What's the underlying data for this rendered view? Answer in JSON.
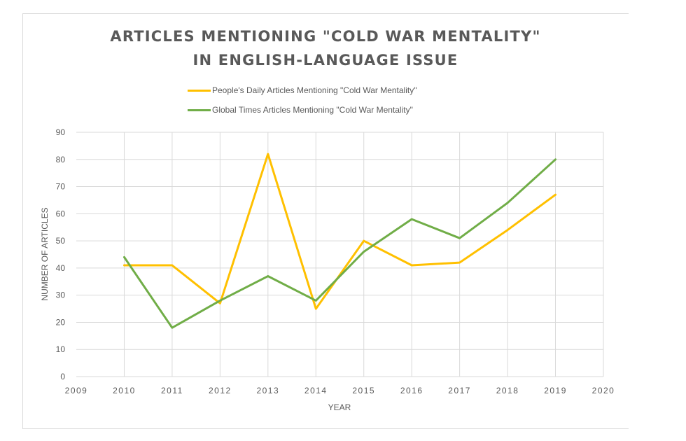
{
  "chart_data": {
    "type": "line",
    "title": "ARTICLES MENTIONING \"COLD WAR MENTALITY\" IN ENGLISH-LANGUAGE ISSUE",
    "title_lines": [
      "ARTICLES MENTIONING \"COLD WAR MENTALITY\"",
      "IN ENGLISH-LANGUAGE ISSUE"
    ],
    "xlabel": "YEAR",
    "ylabel": "NUMBER OF ARTICLES",
    "xlim": [
      2009,
      2020
    ],
    "ylim": [
      0,
      90
    ],
    "x_ticks": [
      2009,
      2010,
      2011,
      2012,
      2013,
      2014,
      2015,
      2016,
      2017,
      2018,
      2019,
      2020
    ],
    "y_ticks": [
      0,
      10,
      20,
      30,
      40,
      50,
      60,
      70,
      80,
      90
    ],
    "grid": true,
    "legend_position": "top-center",
    "x": [
      2010,
      2011,
      2012,
      2013,
      2014,
      2015,
      2016,
      2017,
      2018,
      2019
    ],
    "series": [
      {
        "name": "People's Daily Articles Mentioning \"Cold War Mentality\"",
        "color": "#ffc000",
        "values": [
          41,
          41,
          27,
          82,
          25,
          50,
          41,
          42,
          54,
          67
        ]
      },
      {
        "name": "Global Times Articles Mentioning \"Cold War Mentality\"",
        "color": "#70ad47",
        "values": [
          44,
          18,
          28,
          37,
          28,
          46,
          58,
          51,
          64,
          80
        ]
      }
    ]
  }
}
